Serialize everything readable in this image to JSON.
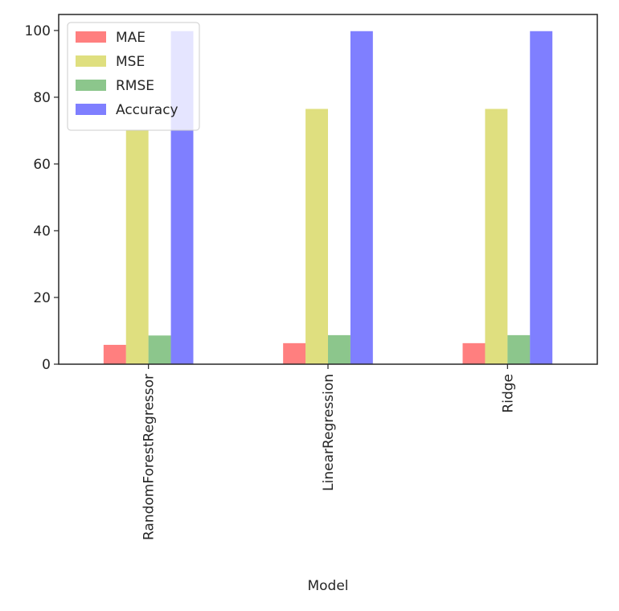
{
  "chart_data": {
    "type": "bar",
    "categories": [
      "RandomForestRegressor",
      "LinearRegression",
      "Ridge"
    ],
    "series": [
      {
        "name": "MAE",
        "values": [
          5.8,
          6.3,
          6.3
        ],
        "color": "#ff0000",
        "opacity": 0.5
      },
      {
        "name": "MSE",
        "values": [
          70.0,
          76.5,
          76.5
        ],
        "color": "#bfbf00",
        "opacity": 0.5
      },
      {
        "name": "RMSE",
        "values": [
          8.6,
          8.7,
          8.7
        ],
        "color": "#008000",
        "opacity": 0.45
      },
      {
        "name": "Accuracy",
        "values": [
          99.8,
          99.8,
          99.8
        ],
        "color": "#0000ff",
        "opacity": 0.5
      }
    ],
    "title": "",
    "xlabel": "Model",
    "ylabel": "",
    "ylim": [
      0,
      104.8
    ],
    "yticks": [
      0,
      20,
      40,
      60,
      80,
      100
    ],
    "grid": false,
    "legend": "upper left",
    "x_tick_rotation": 90
  }
}
